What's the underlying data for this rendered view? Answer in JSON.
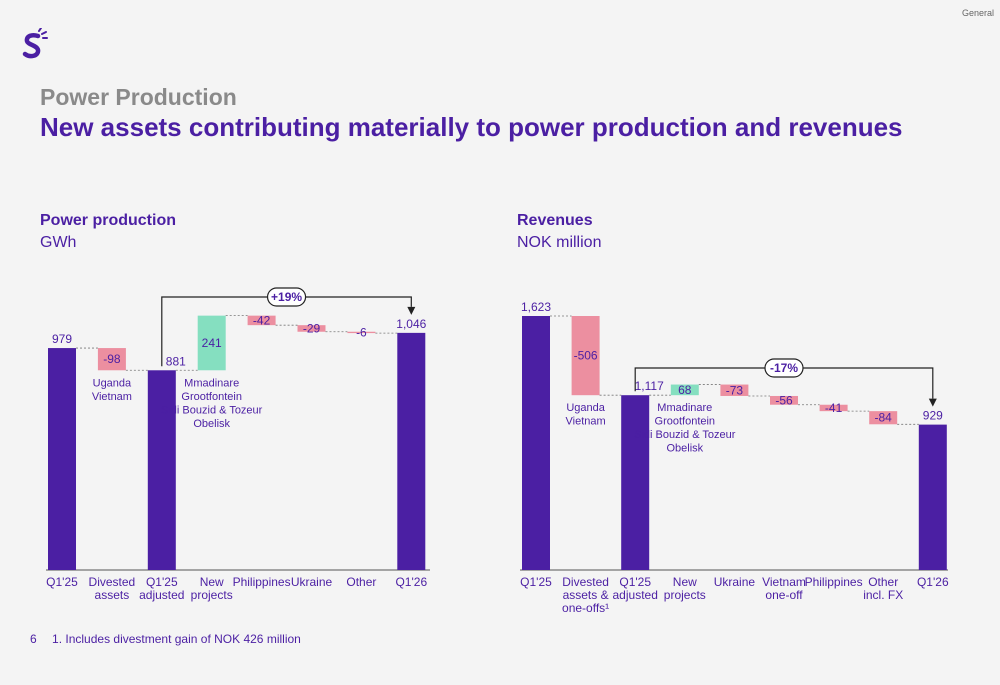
{
  "header": {
    "classification": "General",
    "logo_icon": "brand-s-logo",
    "eyebrow": "Power Production",
    "headline": "New assets contributing materially to power production and revenues"
  },
  "colors": {
    "total": "#4b1fa3",
    "increase": "#85dfc0",
    "decrease": "#ec8fa0"
  },
  "chart_data": [
    {
      "type": "waterfall",
      "title": "Power production",
      "unit": "GWh",
      "categories": [
        [
          "Q1'25"
        ],
        [
          "Divested",
          "assets"
        ],
        [
          "Q1'25",
          "adjusted"
        ],
        [
          "New",
          "projects"
        ],
        [
          "Philippines"
        ],
        [
          "Ukraine"
        ],
        [
          "Other"
        ],
        [
          "Q1'26"
        ]
      ],
      "values": [
        979,
        -98,
        881,
        241,
        -42,
        -29,
        -6,
        1046
      ],
      "labels": [
        "979",
        "-98",
        "881",
        "241",
        "-42",
        "-29",
        "-6",
        "1,046"
      ],
      "kinds": [
        "total",
        "delta",
        "total",
        "delta",
        "delta",
        "delta",
        "delta",
        "total"
      ],
      "annotations": [
        {
          "after": 1,
          "lines": [
            "Uganda",
            "Vietnam"
          ]
        },
        {
          "after": 3,
          "lines": [
            "Mmadinare",
            "Grootfontein",
            "Sidi Bouzid & Tozeur",
            "Obelisk"
          ]
        }
      ],
      "change_label": "+19%",
      "change_from": 2,
      "change_to": 7,
      "ylim": [
        0,
        1200
      ]
    },
    {
      "type": "waterfall",
      "title": "Revenues",
      "unit": "NOK million",
      "categories": [
        [
          "Q1'25"
        ],
        [
          "Divested",
          "assets &",
          "one-offs¹"
        ],
        [
          "Q1'25",
          "adjusted"
        ],
        [
          "New",
          "projects"
        ],
        [
          "Ukraine"
        ],
        [
          "Vietnam",
          "one-off"
        ],
        [
          "Philippines"
        ],
        [
          "Other",
          "incl. FX"
        ],
        [
          "Q1'26"
        ]
      ],
      "values": [
        1623,
        -506,
        1117,
        68,
        -73,
        -56,
        -41,
        -84,
        929
      ],
      "labels": [
        "1,623",
        "-506",
        "1,117",
        "68",
        "-73",
        "-56",
        "-41",
        "-84",
        "929"
      ],
      "kinds": [
        "total",
        "delta",
        "total",
        "delta",
        "delta",
        "delta",
        "delta",
        "delta",
        "total"
      ],
      "annotations": [
        {
          "after": 1,
          "lines": [
            "Uganda",
            "Vietnam"
          ]
        },
        {
          "after": 3,
          "lines": [
            "Mmadinare",
            "Grootfontein",
            "Sidi Bouzid & Tozeur",
            "Obelisk"
          ]
        }
      ],
      "change_label": "-17%",
      "change_from": 2,
      "change_to": 8,
      "ylim": [
        0,
        1700
      ]
    }
  ],
  "footer": {
    "page_number": "6",
    "footnote": "1. Includes divestment gain of NOK 426 million"
  }
}
